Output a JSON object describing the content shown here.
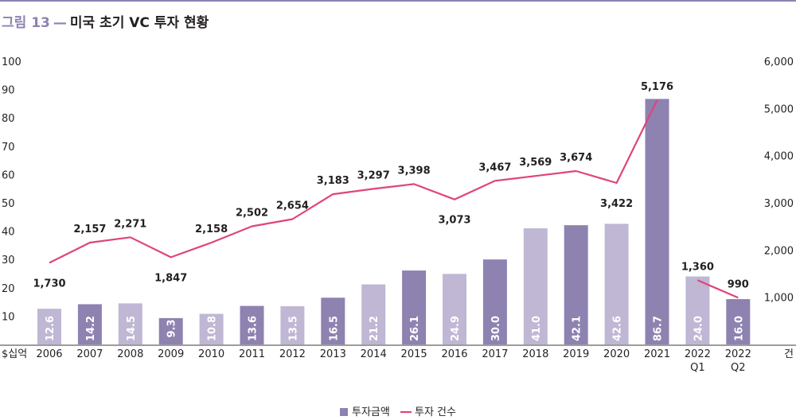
{
  "header": {
    "figure_label": "그림 13",
    "dash": "—",
    "title": "미국 초기 VC 투자 현황"
  },
  "chart_data": {
    "type": "bar",
    "title": "미국 초기 VC 투자 현황",
    "categories": [
      "2006",
      "2007",
      "2008",
      "2009",
      "2010",
      "2011",
      "2012",
      "2013",
      "2014",
      "2015",
      "2016",
      "2017",
      "2018",
      "2019",
      "2020",
      "2021",
      "2022\nQ1",
      "2022\nQ2"
    ],
    "y_left_unit": "$십억",
    "y_right_unit": "건",
    "y_left_ticks": [
      "10",
      "20",
      "30",
      "40",
      "50",
      "60",
      "70",
      "80",
      "90",
      "100"
    ],
    "y_right_ticks": [
      "1,000",
      "2,000",
      "3,000",
      "4,000",
      "5,000",
      "6,000"
    ],
    "ylim_left": [
      0,
      100
    ],
    "ylim_right": [
      0,
      6000
    ],
    "grid": false,
    "legend_position": "bottom-center",
    "series": [
      {
        "name": "투자금액",
        "type": "bar",
        "axis": "left",
        "color": "#8e82b1",
        "light_color": "#bfb7d4",
        "values": [
          12.6,
          14.2,
          14.5,
          9.3,
          10.8,
          13.6,
          13.5,
          16.5,
          21.2,
          26.1,
          24.9,
          30.0,
          41.0,
          42.1,
          42.6,
          86.7,
          24.0,
          16.0
        ],
        "value_labels": [
          "12.6",
          "14.2",
          "14.5",
          "9.3",
          "10.8",
          "13.6",
          "13.5",
          "16.5",
          "21.2",
          "26.1",
          "24.9",
          "30.0",
          "41.0",
          "42.1",
          "42.6",
          "86.7",
          "24.0",
          "16.0"
        ],
        "shade": [
          "light",
          "dark",
          "light",
          "dark",
          "light",
          "dark",
          "light",
          "dark",
          "light",
          "dark",
          "light",
          "dark",
          "light",
          "dark",
          "light",
          "dark",
          "light",
          "dark"
        ]
      },
      {
        "name": "투자 건수",
        "type": "line",
        "axis": "right",
        "color": "#e0447a",
        "segments": [
          [
            0,
            15
          ],
          [
            16,
            17
          ]
        ],
        "values": [
          1730,
          2157,
          2271,
          1847,
          2158,
          2502,
          2654,
          3183,
          3297,
          3398,
          3073,
          3467,
          3569,
          3674,
          3422,
          5176,
          1360,
          990
        ],
        "value_labels": [
          "1,730",
          "2,157",
          "2,271",
          "1,847",
          "2,158",
          "2,502",
          "2,654",
          "3,183",
          "3,297",
          "3,398",
          "3,073",
          "3,467",
          "3,569",
          "3,674",
          "3,422",
          "5,176",
          "1,360",
          "990"
        ],
        "label_position": [
          "below",
          "above",
          "above",
          "below",
          "above",
          "above",
          "above",
          "above",
          "above",
          "above",
          "below",
          "above",
          "above",
          "above",
          "below",
          "above",
          "above",
          "above"
        ]
      }
    ]
  }
}
